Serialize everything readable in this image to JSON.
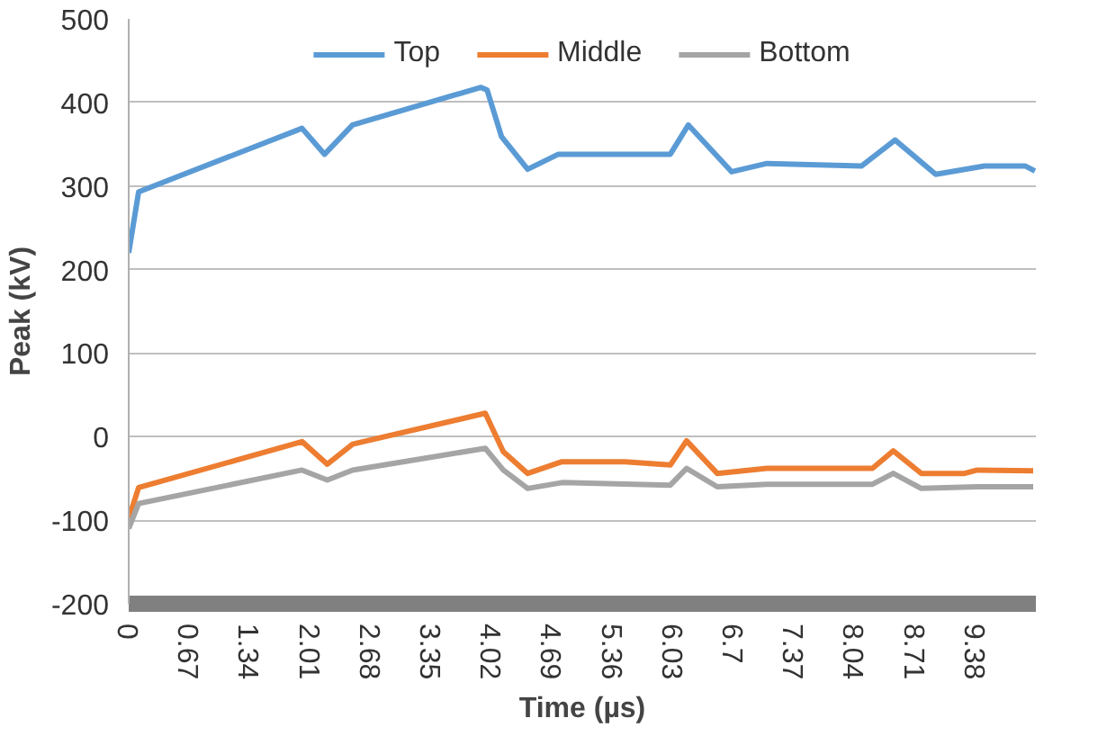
{
  "chart_data": {
    "type": "line",
    "xlabel": "Time (µs)",
    "ylabel": "Peak (kV)",
    "xlim": [
      0,
      10.05
    ],
    "xticks": [
      0,
      0.67,
      1.34,
      2.01,
      2.68,
      3.35,
      4.02,
      4.69,
      5.36,
      6.03,
      6.7,
      7.37,
      8.04,
      8.71,
      9.38
    ],
    "ylim": [
      -200,
      500
    ],
    "yticks": [
      -200,
      -100,
      0,
      100,
      200,
      300,
      400,
      500
    ],
    "grid": "y",
    "legend": "top",
    "marker": "none",
    "line_style": "solid",
    "series": [
      {
        "name": "Top",
        "color": "#5b9bd5",
        "x": [
          0,
          0.11,
          1.92,
          2.17,
          2.48,
          3.9,
          3.97,
          4.13,
          4.42,
          4.76,
          6.0,
          6.2,
          6.68,
          7.07,
          8.12,
          8.49,
          8.94,
          9.48,
          9.93,
          10.04
        ],
        "values": [
          220,
          293,
          369,
          338,
          373,
          418,
          415,
          359,
          320,
          338,
          338,
          373,
          317,
          327,
          324,
          355,
          314,
          324,
          324,
          318
        ]
      },
      {
        "name": "Middle",
        "color": "#ed7d31",
        "x": [
          0,
          0.11,
          1.92,
          2.2,
          2.48,
          3.95,
          4.15,
          4.42,
          4.8,
          5.5,
          6.0,
          6.18,
          6.52,
          7.07,
          8.24,
          8.47,
          8.78,
          9.26,
          9.4,
          10.02
        ],
        "values": [
          -98,
          -61,
          -6,
          -33,
          -9,
          28,
          -18,
          -44,
          -30,
          -30,
          -34,
          -5,
          -44,
          -38,
          -38,
          -17,
          -44,
          -44,
          -40,
          -41
        ]
      },
      {
        "name": "Bottom",
        "color": "#a5a5a5",
        "x": [
          0,
          0.11,
          1.92,
          2.2,
          2.48,
          3.95,
          4.15,
          4.42,
          4.8,
          6.0,
          6.18,
          6.52,
          7.07,
          8.24,
          8.47,
          8.78,
          9.4,
          10.02
        ],
        "values": [
          -110,
          -80,
          -40,
          -52,
          -40,
          -14,
          -40,
          -62,
          -55,
          -58,
          -38,
          -60,
          -57,
          -57,
          -44,
          -62,
          -60,
          -60
        ]
      }
    ]
  }
}
